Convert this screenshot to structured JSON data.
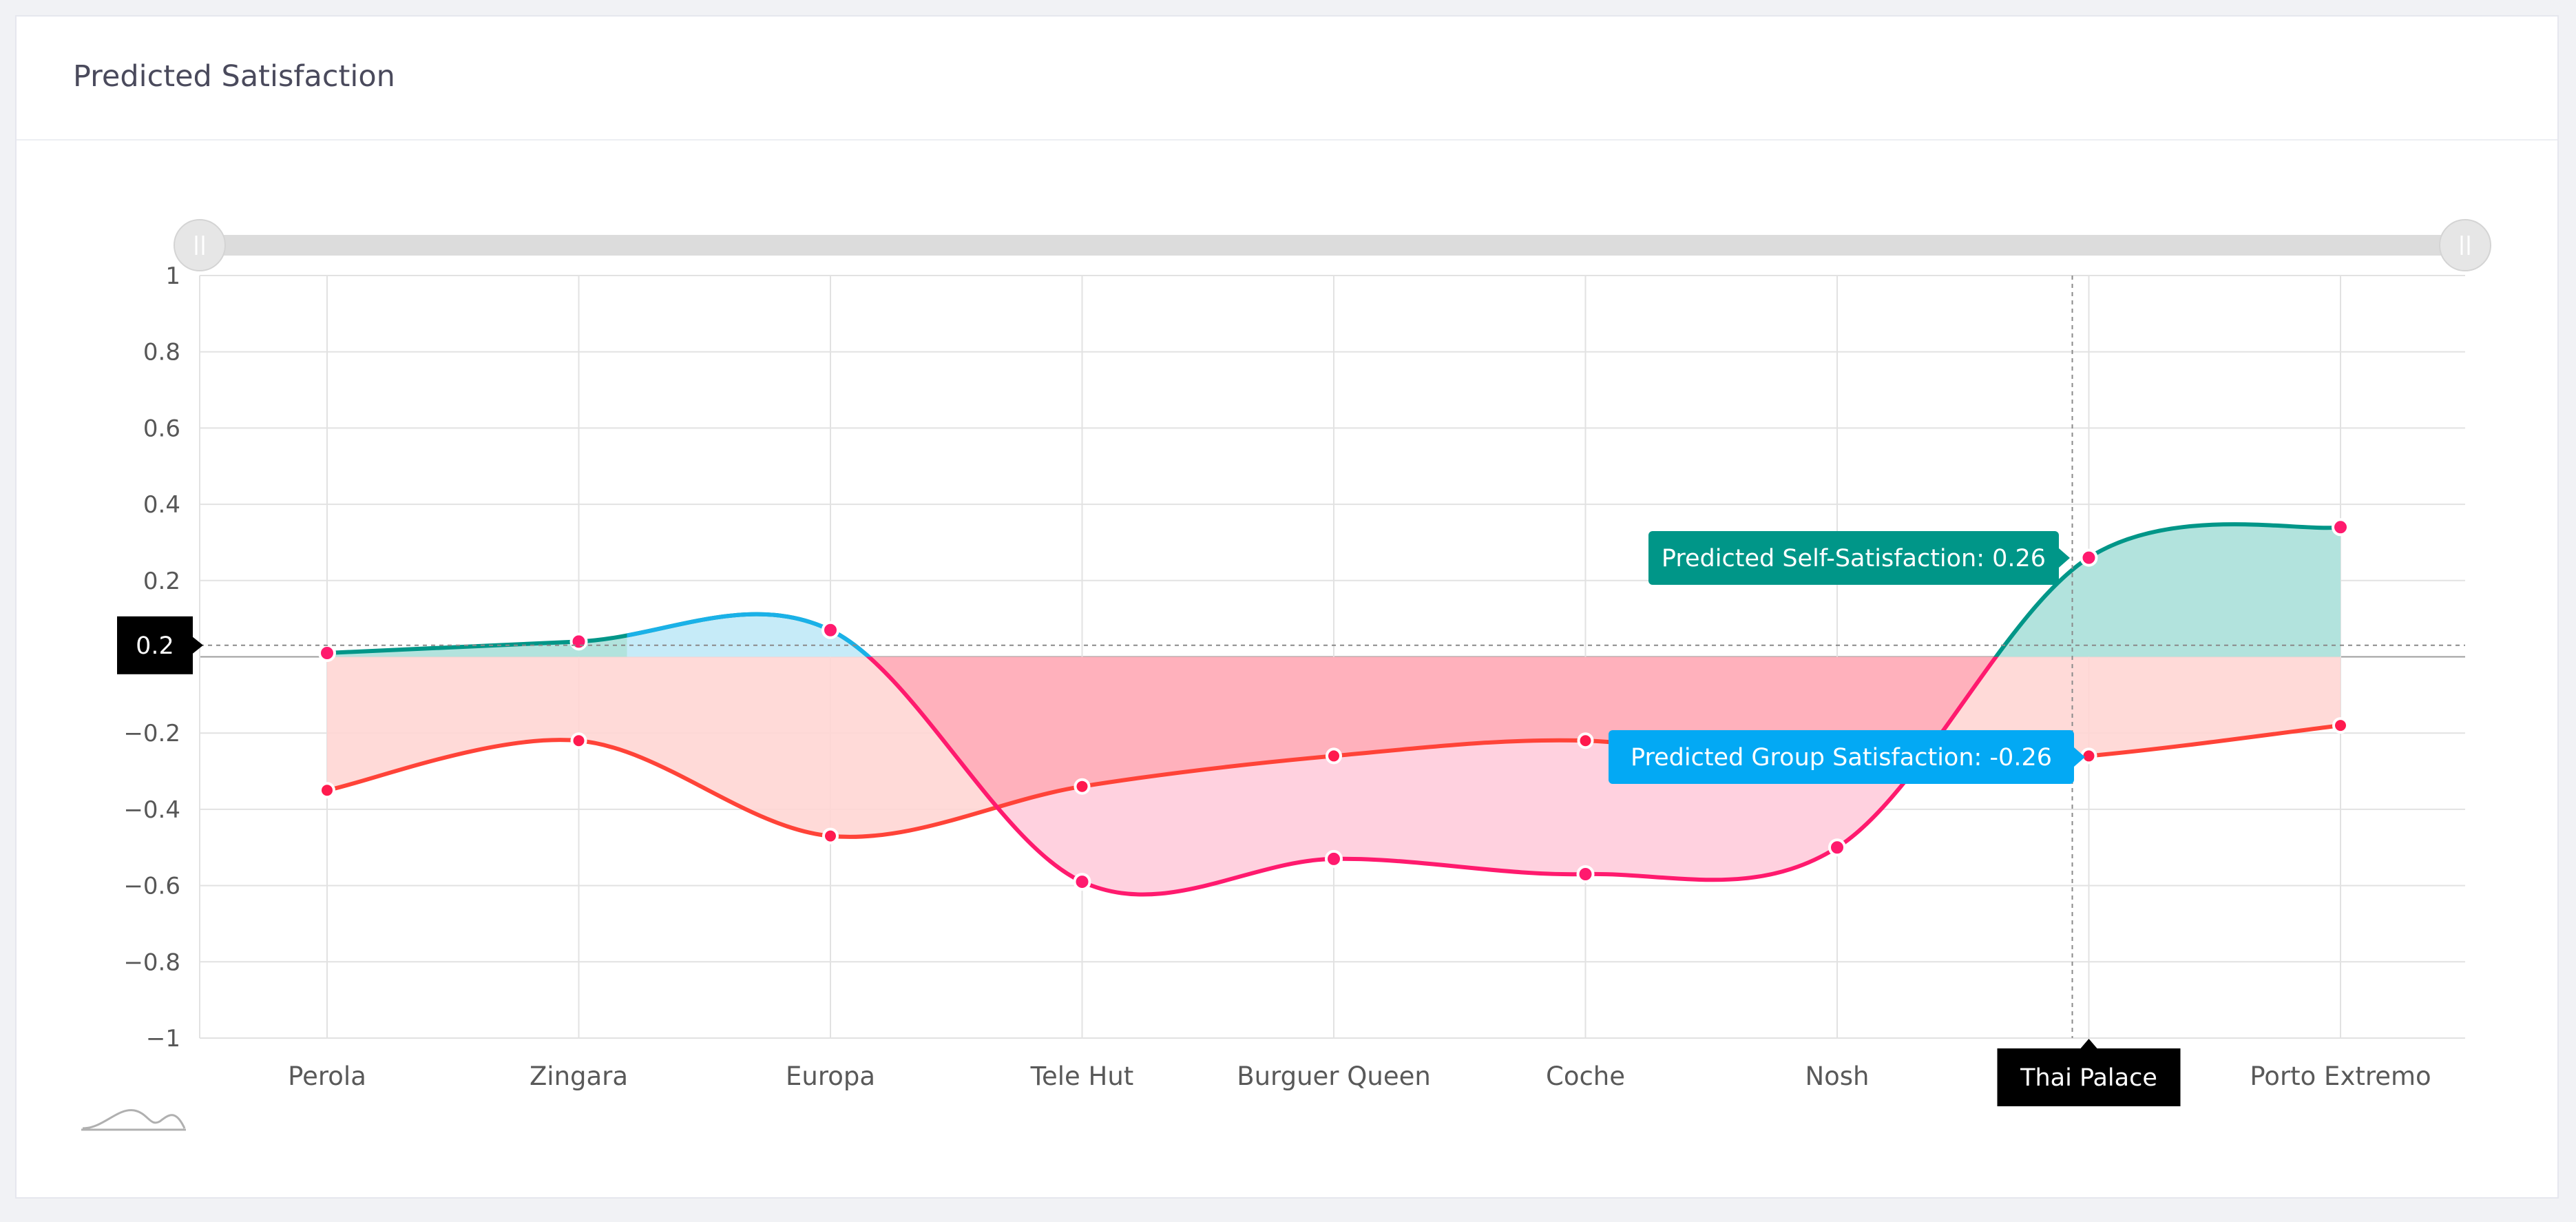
{
  "card": {
    "title": "Predicted Satisfaction"
  },
  "chart_data": {
    "type": "area",
    "title": "Predicted Satisfaction",
    "categories": [
      "Perola",
      "Zingara",
      "Europa",
      "Tele Hut",
      "Burguer Queen",
      "Coche",
      "Nosh",
      "Thai Palace",
      "Porto Extremo"
    ],
    "ylim": [
      -1,
      1
    ],
    "yticks": [
      -1,
      -0.8,
      -0.6,
      -0.4,
      -0.2,
      0,
      0.2,
      0.4,
      0.6,
      0.8,
      1
    ],
    "ytick_labels": [
      "−1",
      "−0.8",
      "−0.6",
      "−0.4",
      "−0.2",
      "0",
      "0.2",
      "0.4",
      "0.6",
      "0.8",
      "1"
    ],
    "grid": true,
    "series": [
      {
        "name": "Predicted Self-Satisfaction",
        "values": [
          0.01,
          0.04,
          0.07,
          -0.59,
          -0.53,
          -0.57,
          -0.5,
          0.26,
          0.34
        ],
        "color_positive": "#009688",
        "color_negative": "#ff1a6e",
        "fill_positive": "#b2e3dd",
        "fill_negative": "#ffd1df",
        "color_peak": "#1ab1e8",
        "fill_peak": "#c6ebf8"
      },
      {
        "name": "Predicted Group Satisfaction",
        "values": [
          -0.35,
          -0.22,
          -0.47,
          -0.34,
          -0.26,
          -0.22,
          -0.3,
          -0.26,
          -0.18
        ],
        "color": "#ff4338",
        "fill": "#ffd6d4",
        "overlap_fill": "#ffb1bc"
      }
    ],
    "crosshair": {
      "category": "Thai Palace",
      "y_value": "0.2"
    },
    "tooltips": [
      {
        "text": "Predicted Self-Satisfaction: 0.26",
        "color": "#009688"
      },
      {
        "text": "Predicted Group Satisfaction: -0.26",
        "color": "#03a9f4"
      }
    ],
    "x_tooltip": "Thai Palace"
  },
  "icons": {
    "slider_handles": "grip-handle-icon",
    "navigator": "chart-navigator-icon"
  }
}
